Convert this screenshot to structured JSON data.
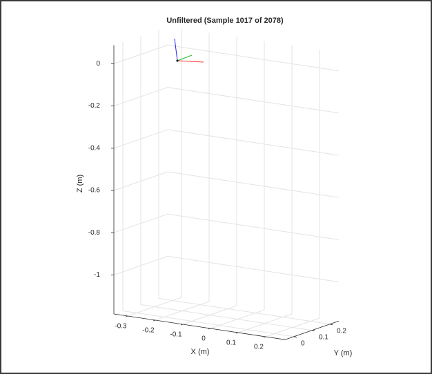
{
  "chart_data": {
    "type": "axes3d",
    "title": "Unfiltered (Sample 1017 of 2078)",
    "xlabel": "X (m)",
    "ylabel": "Y (m)",
    "zlabel": "Z (m)",
    "xlim": [
      -0.35,
      0.27
    ],
    "ylim": [
      -0.05,
      0.25
    ],
    "zlim": [
      -1.185,
      0.088
    ],
    "xticks": [
      -0.3,
      -0.2,
      -0.1,
      0,
      0.1,
      0.2
    ],
    "yticks": [
      0,
      0.1,
      0.2
    ],
    "zticks": [
      0,
      -0.2,
      -0.4,
      -0.6,
      -0.8,
      -1
    ],
    "grid": true
  }
}
